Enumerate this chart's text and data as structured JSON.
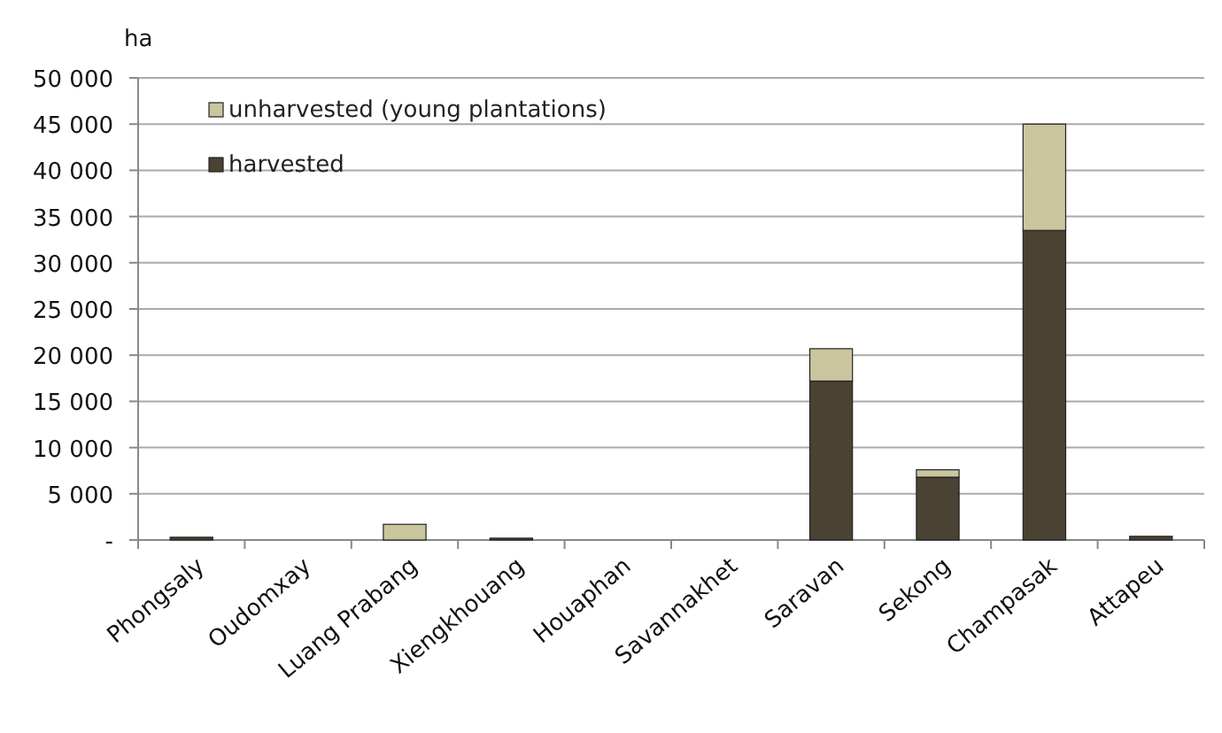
{
  "chart_data": {
    "type": "bar",
    "stacked": true,
    "ylabel": "ha",
    "categories": [
      "Phongsaly",
      "Oudomxay",
      "Luang Prabang",
      "Xiengkhouang",
      "Houaphan",
      "Savannakhet",
      "Saravan",
      "Sekong",
      "Champasak",
      "Attapeu"
    ],
    "series": [
      {
        "name": "harvested",
        "color": "#4a4232",
        "values": [
          300,
          0,
          0,
          200,
          0,
          0,
          17200,
          6800,
          33500,
          400
        ]
      },
      {
        "name": "unharvested (young plantations)",
        "color": "#cbc59f",
        "values": [
          0,
          0,
          1700,
          0,
          0,
          0,
          3500,
          800,
          11500,
          0
        ]
      }
    ],
    "ylim": [
      0,
      50000
    ],
    "yticks": [
      {
        "value": 0,
        "label": "-"
      },
      {
        "value": 5000,
        "label": "5 000"
      },
      {
        "value": 10000,
        "label": "10 000"
      },
      {
        "value": 15000,
        "label": "15 000"
      },
      {
        "value": 20000,
        "label": "20 000"
      },
      {
        "value": 25000,
        "label": "25 000"
      },
      {
        "value": 30000,
        "label": "30 000"
      },
      {
        "value": 35000,
        "label": "35 000"
      },
      {
        "value": 40000,
        "label": "40 000"
      },
      {
        "value": 45000,
        "label": "45 000"
      },
      {
        "value": 50000,
        "label": "50 000"
      }
    ],
    "grid": "y",
    "legend": "top left"
  }
}
